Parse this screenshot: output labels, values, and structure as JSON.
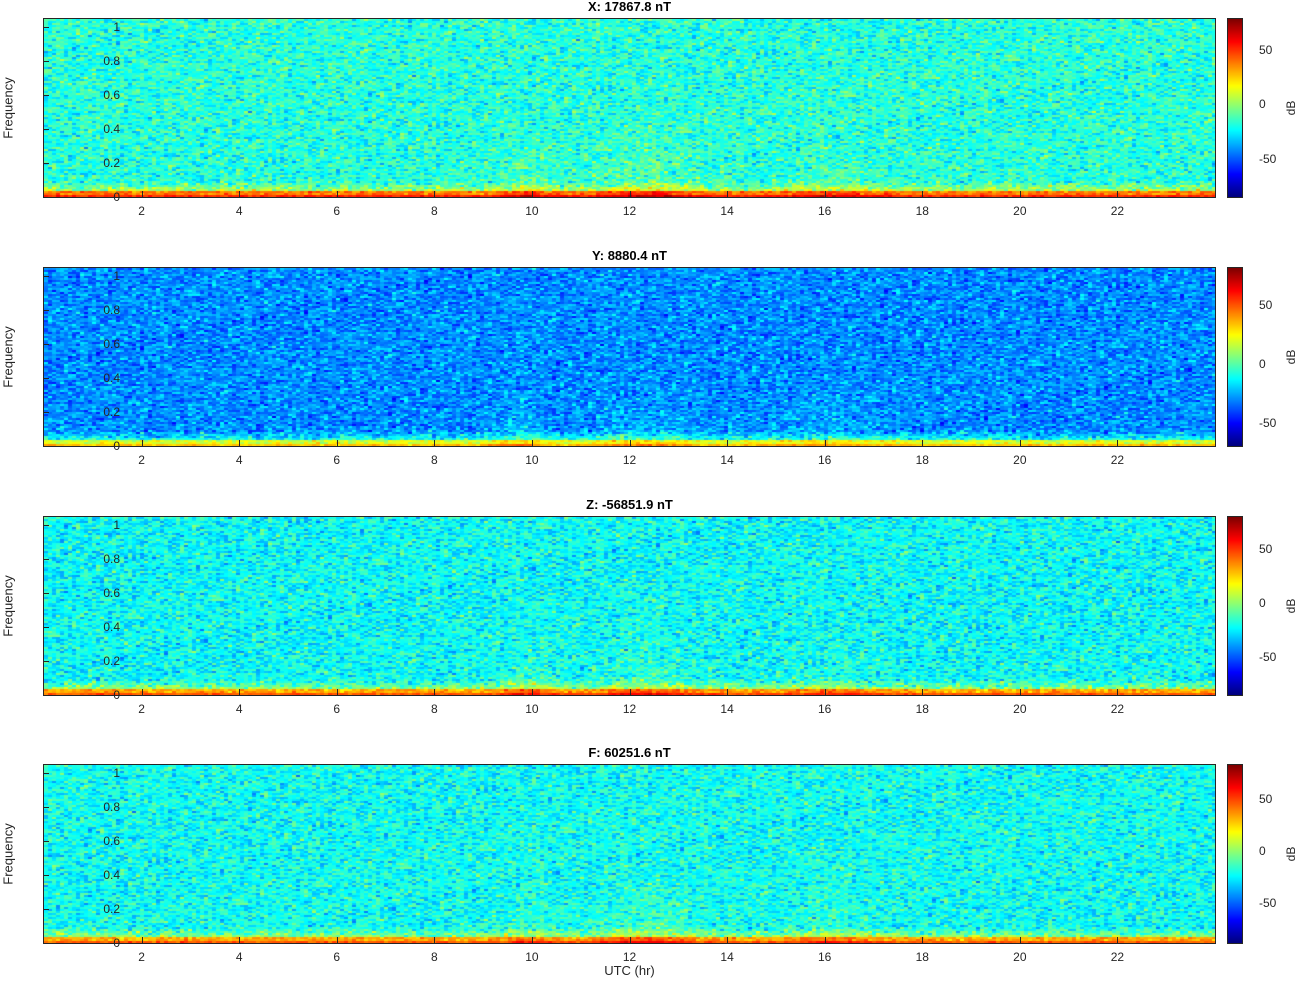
{
  "chart_data": [
    {
      "type": "heatmap",
      "title": "X: 17867.8 nT",
      "ylabel": "Frequency",
      "xlabel": "",
      "colorbar_label": "dB",
      "colormap": "jet",
      "xlim": [
        0,
        24
      ],
      "ylim": [
        0,
        1.05
      ],
      "clim": [
        -85,
        78
      ],
      "xticks": [
        2,
        4,
        6,
        8,
        10,
        12,
        14,
        16,
        18,
        20,
        22
      ],
      "yticks": [
        0,
        0.2,
        0.4,
        0.6,
        0.8,
        1
      ],
      "cticks": [
        -50,
        0,
        50
      ],
      "background_level_db": -18,
      "low_freq_band_db": 38,
      "noise_spread_db": 9,
      "activity_bursts": [
        {
          "center_hr": 9.9,
          "width_hr": 0.5,
          "boost_db": 13
        },
        {
          "center_hr": 12.4,
          "width_hr": 1.0,
          "boost_db": 18
        },
        {
          "center_hr": 16.2,
          "width_hr": 1.0,
          "boost_db": 10
        }
      ]
    },
    {
      "type": "heatmap",
      "title": "Y: 8880.4 nT",
      "ylabel": "Frequency",
      "xlabel": "",
      "colorbar_label": "dB",
      "colormap": "jet",
      "xlim": [
        0,
        24
      ],
      "ylim": [
        0,
        1.05
      ],
      "clim": [
        -70,
        82
      ],
      "xticks": [
        2,
        4,
        6,
        8,
        10,
        12,
        14,
        16,
        18,
        20,
        22
      ],
      "yticks": [
        0,
        0.2,
        0.4,
        0.6,
        0.8,
        1
      ],
      "cticks": [
        -50,
        0,
        50
      ],
      "background_level_db": -30,
      "low_freq_band_db": 20,
      "noise_spread_db": 8,
      "activity_bursts": [
        {
          "center_hr": 9.7,
          "width_hr": 0.5,
          "boost_db": 14
        },
        {
          "center_hr": 12.3,
          "width_hr": 1.0,
          "boost_db": 12
        },
        {
          "center_hr": 16.0,
          "width_hr": 1.0,
          "boost_db": 9
        }
      ]
    },
    {
      "type": "heatmap",
      "title": "Z: -56851.9 nT",
      "ylabel": "Frequency",
      "xlabel": "",
      "colorbar_label": "dB",
      "colormap": "jet",
      "xlim": [
        0,
        24
      ],
      "ylim": [
        0,
        1.05
      ],
      "clim": [
        -85,
        80
      ],
      "xticks": [
        2,
        4,
        6,
        8,
        10,
        12,
        14,
        16,
        18,
        20,
        22
      ],
      "yticks": [
        0,
        0.2,
        0.4,
        0.6,
        0.8,
        1
      ],
      "cticks": [
        -50,
        0,
        50
      ],
      "background_level_db": -22,
      "low_freq_band_db": 32,
      "noise_spread_db": 9,
      "activity_bursts": [
        {
          "center_hr": 9.9,
          "width_hr": 0.5,
          "boost_db": 13
        },
        {
          "center_hr": 12.4,
          "width_hr": 1.0,
          "boost_db": 16
        },
        {
          "center_hr": 16.2,
          "width_hr": 1.0,
          "boost_db": 10
        }
      ]
    },
    {
      "type": "heatmap",
      "title": "F: 60251.6 nT",
      "ylabel": "Frequency",
      "xlabel": "UTC (hr)",
      "colorbar_label": "dB",
      "colormap": "jet",
      "xlim": [
        0,
        24
      ],
      "ylim": [
        0,
        1.05
      ],
      "clim": [
        -88,
        82
      ],
      "xticks": [
        2,
        4,
        6,
        8,
        10,
        12,
        14,
        16,
        18,
        20,
        22
      ],
      "yticks": [
        0,
        0.2,
        0.4,
        0.6,
        0.8,
        1
      ],
      "cticks": [
        -50,
        0,
        50
      ],
      "background_level_db": -22,
      "low_freq_band_db": 32,
      "noise_spread_db": 9,
      "activity_bursts": [
        {
          "center_hr": 9.9,
          "width_hr": 0.5,
          "boost_db": 13
        },
        {
          "center_hr": 12.4,
          "width_hr": 1.0,
          "boost_db": 16
        },
        {
          "center_hr": 16.2,
          "width_hr": 1.0,
          "boost_db": 10
        }
      ]
    }
  ]
}
